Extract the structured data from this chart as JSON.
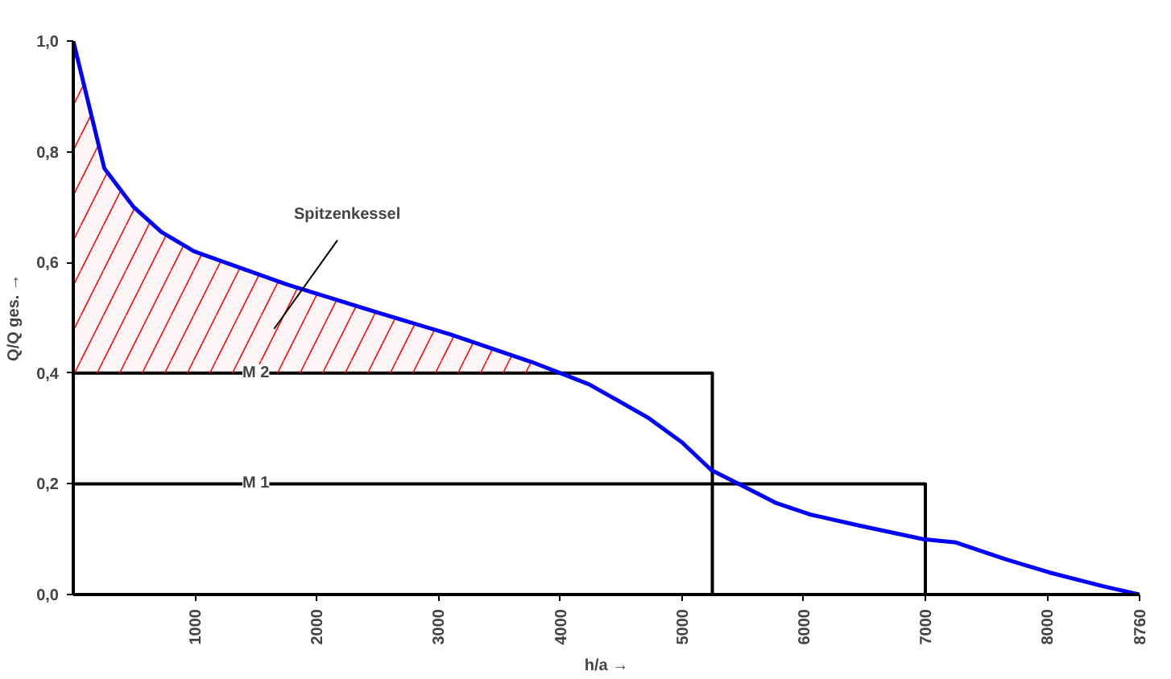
{
  "chart_data": {
    "type": "line",
    "xlabel": "h/a →",
    "ylabel": "Q/Q ges. →",
    "xlim": [
      0,
      8760
    ],
    "ylim": [
      0,
      1.0
    ],
    "xticks": [
      1000,
      2000,
      3000,
      4000,
      5000,
      6000,
      7000,
      8000,
      8760
    ],
    "yticks": [
      {
        "value": 0,
        "label": "0,0"
      },
      {
        "value": 0.2,
        "label": "0,2"
      },
      {
        "value": 0.4,
        "label": "0,4"
      },
      {
        "value": 0.6,
        "label": "0,6"
      },
      {
        "value": 0.8,
        "label": "0,8"
      },
      {
        "value": 1.0,
        "label": "1,0"
      }
    ],
    "grid": false,
    "marker": "none",
    "line_style": "solid",
    "series": [
      {
        "color": "#000000",
        "x": [
          0,
          5250,
          5250
        ],
        "values": [
          0.4,
          0.4,
          0
        ]
      },
      {
        "color": "#000000",
        "x": [
          0,
          7000,
          7000
        ],
        "values": [
          0.2,
          0.2,
          0
        ]
      },
      {
        "color": "#0000ff",
        "x": [
          0,
          255,
          496,
          724,
          992,
          1756,
          2493,
          3097,
          3767,
          4236,
          4718,
          5000,
          5241,
          5509,
          5777,
          6046,
          6448,
          6984,
          7252,
          7654,
          8016,
          8458,
          8760
        ],
        "values": [
          1.0,
          0.77,
          0.7,
          0.655,
          0.62,
          0.56,
          0.51,
          0.47,
          0.42,
          0.38,
          0.32,
          0.275,
          0.225,
          0.195,
          0.165,
          0.145,
          0.125,
          0.1,
          0.094,
          0.064,
          0.04,
          0.015,
          0
        ],
        "lower": [
          0.4,
          0.4,
          0.4,
          0.4,
          0.4,
          0.4,
          0.4,
          0.4,
          0.4,
          null,
          null,
          null,
          null,
          null,
          null,
          null,
          null,
          null,
          null,
          null,
          null,
          null,
          null
        ],
        "upper": [
          1.0,
          0.77,
          0.7,
          0.655,
          0.62,
          0.56,
          0.51,
          0.47,
          0.42,
          null,
          null,
          null,
          null,
          null,
          null,
          null,
          null,
          null,
          null,
          null,
          null,
          null,
          null
        ]
      }
    ],
    "annotations": [
      "Spitzenkessel",
      {
        "text": "M 2",
        "x": 1500,
        "y": 0.4
      },
      {
        "text": "M 1",
        "x": 1500,
        "y": 0.2
      }
    ]
  }
}
